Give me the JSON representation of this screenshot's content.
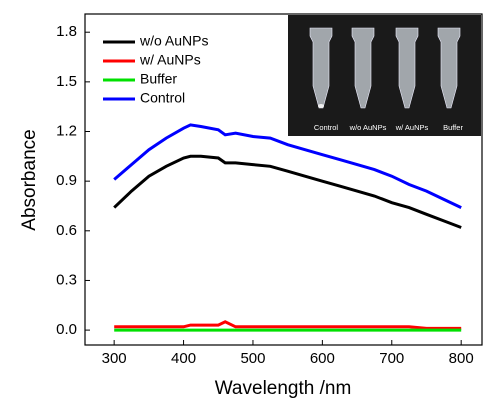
{
  "chart_data": {
    "type": "line",
    "x_label": "Wavelength /nm",
    "y_label": "Absorbance",
    "x": [
      300,
      325,
      350,
      375,
      400,
      410,
      425,
      450,
      460,
      475,
      500,
      525,
      550,
      575,
      600,
      625,
      650,
      675,
      700,
      725,
      750,
      775,
      800
    ],
    "series": [
      {
        "name": "w/o AuNPs",
        "color": "#000000",
        "values": [
          0.74,
          0.84,
          0.93,
          0.99,
          1.04,
          1.05,
          1.05,
          1.04,
          1.01,
          1.01,
          1.0,
          0.99,
          0.96,
          0.93,
          0.9,
          0.87,
          0.84,
          0.81,
          0.77,
          0.74,
          0.7,
          0.66,
          0.62
        ]
      },
      {
        "name": "w/ AuNPs",
        "color": "#ff0000",
        "values": [
          0.02,
          0.02,
          0.02,
          0.02,
          0.02,
          0.03,
          0.03,
          0.03,
          0.05,
          0.02,
          0.02,
          0.02,
          0.02,
          0.02,
          0.02,
          0.02,
          0.02,
          0.02,
          0.02,
          0.02,
          0.01,
          0.01,
          0.01
        ]
      },
      {
        "name": "Buffer",
        "color": "#00e000",
        "values": [
          0,
          0,
          0,
          0,
          0,
          0,
          0,
          0,
          0,
          0,
          0,
          0,
          0,
          0,
          0,
          0,
          0,
          0,
          0,
          0,
          0,
          0,
          0
        ]
      },
      {
        "name": "Control",
        "color": "#0000ff",
        "values": [
          0.91,
          1.0,
          1.09,
          1.16,
          1.22,
          1.24,
          1.23,
          1.21,
          1.18,
          1.19,
          1.17,
          1.16,
          1.12,
          1.09,
          1.06,
          1.03,
          1.0,
          0.97,
          0.93,
          0.88,
          0.84,
          0.79,
          0.74
        ]
      }
    ],
    "xlim": [
      258,
      830
    ],
    "ylim": [
      -0.09,
      1.91
    ],
    "xticks": [
      300,
      400,
      500,
      600,
      700,
      800
    ],
    "yticks": [
      {
        "value": 0,
        "label": "0.0"
      },
      0.3,
      0.6,
      0.9,
      1.2,
      1.5,
      1.8
    ],
    "legend": "upper-left"
  },
  "inset": {
    "labels": [
      "Control",
      "w/o AuNPs",
      "w/ AuNPs",
      "Buffer"
    ]
  }
}
